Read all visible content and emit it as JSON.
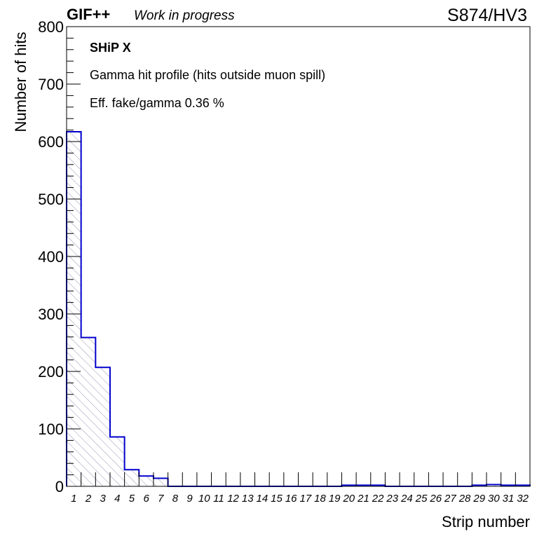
{
  "header": {
    "experiment": "GIF++",
    "status": "Work in progress",
    "run": "S874/HV3"
  },
  "annotations": {
    "experiment": "SHiP X",
    "description": "Gamma hit profile (hits outside muon spill)",
    "efficiency": "Eff. fake/gamma 0.36 %"
  },
  "chart_data": {
    "type": "bar",
    "style": "histogram step, hatched fill",
    "xlabel": "Strip number",
    "ylabel": "Number of hits",
    "ylim": [
      0,
      800
    ],
    "yticks": [
      0,
      100,
      200,
      300,
      400,
      500,
      600,
      700,
      800
    ],
    "categories": [
      "1",
      "2",
      "3",
      "4",
      "5",
      "6",
      "7",
      "8",
      "9",
      "10",
      "11",
      "12",
      "13",
      "14",
      "15",
      "16",
      "17",
      "18",
      "19",
      "20",
      "21",
      "22",
      "23",
      "24",
      "25",
      "26",
      "27",
      "28",
      "29",
      "30",
      "31",
      "32"
    ],
    "values": [
      617,
      259,
      207,
      86,
      29,
      18,
      14,
      0,
      0,
      0,
      0,
      0,
      0,
      0,
      0,
      0,
      0,
      0,
      0,
      2,
      2,
      2,
      0,
      0,
      0,
      0,
      0,
      0,
      2,
      3,
      2,
      2
    ],
    "grid": false,
    "colors": {
      "line": "#0000cc",
      "hatch": "#8a8aa8",
      "frame": "#000000"
    }
  }
}
